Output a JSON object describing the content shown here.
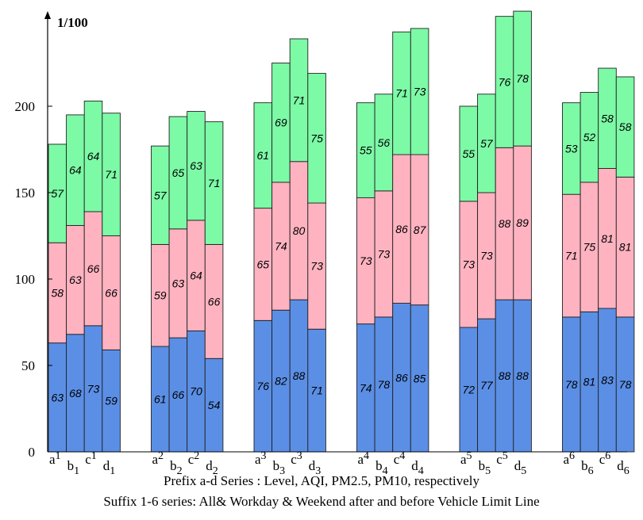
{
  "chart_data": {
    "type": "bar",
    "stacked": true,
    "unit_label": "1/100",
    "ylim": [
      0,
      250
    ],
    "yticks": [
      0,
      50,
      100,
      150,
      200
    ],
    "grid": false,
    "groups": [
      {
        "bars": [
          {
            "prefix": "a",
            "suffix": "1"
          },
          {
            "prefix": "b",
            "suffix": "1"
          },
          {
            "prefix": "c",
            "suffix": "1"
          },
          {
            "prefix": "d",
            "suffix": "1"
          }
        ]
      },
      {
        "bars": [
          {
            "prefix": "a",
            "suffix": "2"
          },
          {
            "prefix": "b",
            "suffix": "2"
          },
          {
            "prefix": "c",
            "suffix": "2"
          },
          {
            "prefix": "d",
            "suffix": "2"
          }
        ]
      },
      {
        "bars": [
          {
            "prefix": "a",
            "suffix": "3"
          },
          {
            "prefix": "b",
            "suffix": "3"
          },
          {
            "prefix": "c",
            "suffix": "3"
          },
          {
            "prefix": "d",
            "suffix": "3"
          }
        ]
      },
      {
        "bars": [
          {
            "prefix": "a",
            "suffix": "4"
          },
          {
            "prefix": "b",
            "suffix": "4"
          },
          {
            "prefix": "c",
            "suffix": "4"
          },
          {
            "prefix": "d",
            "suffix": "4"
          }
        ]
      },
      {
        "bars": [
          {
            "prefix": "a",
            "suffix": "5"
          },
          {
            "prefix": "b",
            "suffix": "5"
          },
          {
            "prefix": "c",
            "suffix": "5"
          },
          {
            "prefix": "d",
            "suffix": "5"
          }
        ]
      },
      {
        "bars": [
          {
            "prefix": "a",
            "suffix": "6"
          },
          {
            "prefix": "b",
            "suffix": "6"
          },
          {
            "prefix": "c",
            "suffix": "6"
          },
          {
            "prefix": "d",
            "suffix": "6"
          }
        ]
      }
    ],
    "series": [
      {
        "color": "#5b8fe6",
        "values": [
          63,
          68,
          73,
          59,
          61,
          66,
          70,
          54,
          76,
          82,
          88,
          71,
          74,
          78,
          86,
          85,
          72,
          77,
          88,
          88,
          78,
          81,
          83,
          78
        ]
      },
      {
        "color": "#ffb3c1",
        "values": [
          58,
          63,
          66,
          66,
          59,
          63,
          64,
          66,
          65,
          74,
          80,
          73,
          73,
          73,
          86,
          87,
          73,
          73,
          88,
          89,
          71,
          75,
          81,
          81
        ]
      },
      {
        "color": "#7dfaa6",
        "values": [
          57,
          64,
          64,
          71,
          57,
          65,
          63,
          71,
          61,
          69,
          71,
          75,
          55,
          56,
          71,
          73,
          55,
          57,
          76,
          78,
          53,
          52,
          58,
          58
        ]
      }
    ],
    "captions": [
      "Prefix a-d Series : Level, AQI, PM2.5, PM10, respectively",
      "Suffix 1-6 series: All& Workday & Weekend after and before Vehicle Limit Line"
    ]
  }
}
